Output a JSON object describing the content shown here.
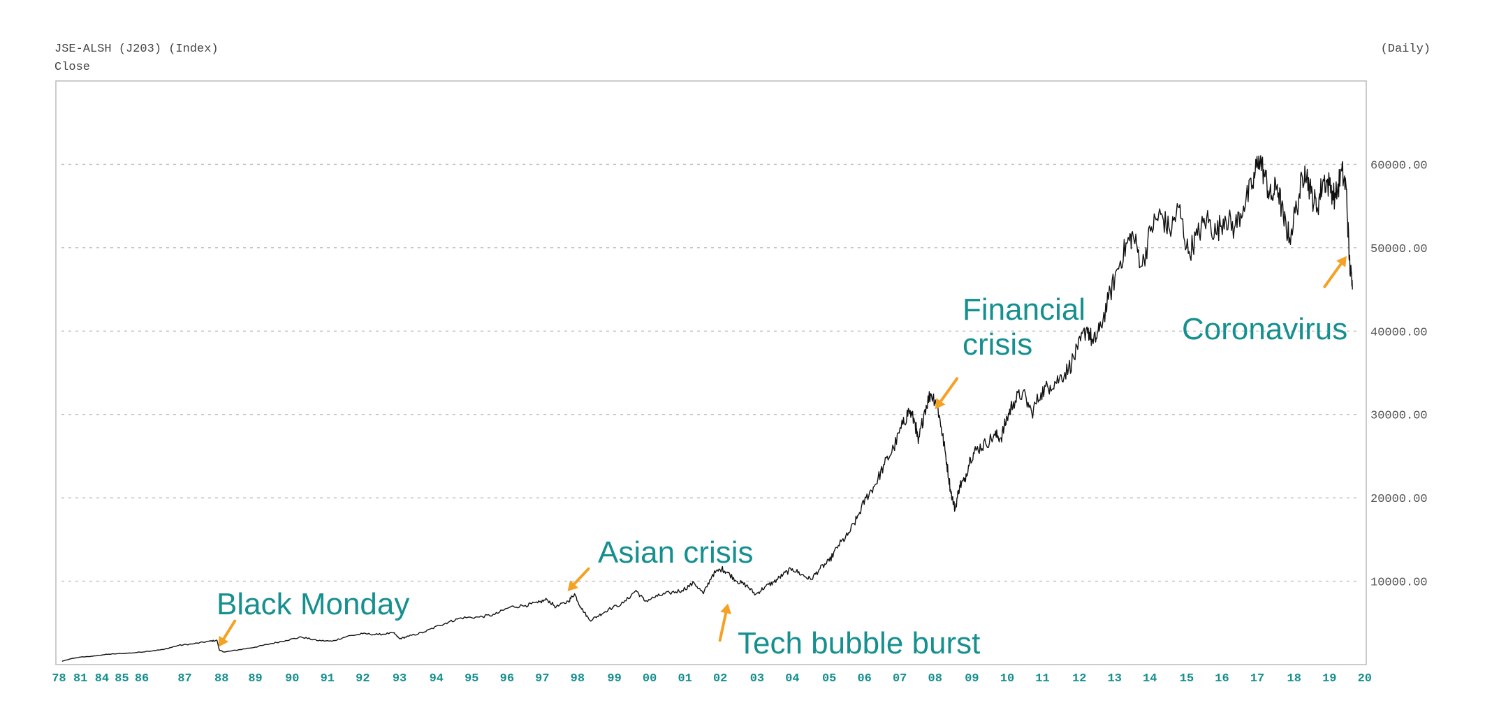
{
  "header": {
    "title": "JSE-ALSH (J203) (Index)",
    "subtitle": "Close",
    "frequency": "(Daily)"
  },
  "colors": {
    "line": "#111111",
    "annotation": "#168f8f",
    "arrow": "#f4a124",
    "xtick": "#168f8f",
    "grid": "#bdbdbd",
    "frame": "#bbbbbb"
  },
  "chart_data": {
    "type": "line",
    "title": "JSE-ALSH (J203) (Index)",
    "ylabel": "",
    "xlabel": "",
    "grid": true,
    "ylim": [
      0,
      70000
    ],
    "xlim": [
      1978.0,
      2020.7
    ],
    "y_ticks": [
      {
        "value": 10000,
        "label": "10000.00"
      },
      {
        "value": 20000,
        "label": "20000.00"
      },
      {
        "value": 30000,
        "label": "30000.00"
      },
      {
        "value": 40000,
        "label": "40000.00"
      },
      {
        "value": 50000,
        "label": "50000.00"
      },
      {
        "value": 60000,
        "label": "60000.00"
      }
    ],
    "x_ticks": [
      {
        "value": 1978.1,
        "label": "78"
      },
      {
        "value": 1978.8,
        "label": "81"
      },
      {
        "value": 1979.5,
        "label": "84"
      },
      {
        "value": 1980.15,
        "label": "85"
      },
      {
        "value": 1980.8,
        "label": "86"
      },
      {
        "value": 1982.2,
        "label": "87"
      },
      {
        "value": 1983.4,
        "label": "88"
      },
      {
        "value": 1984.5,
        "label": "89"
      },
      {
        "value": 1985.7,
        "label": "90"
      },
      {
        "value": 1986.85,
        "label": "91"
      },
      {
        "value": 1988.0,
        "label": "92"
      },
      {
        "value": 1989.2,
        "label": "93"
      },
      {
        "value": 1990.4,
        "label": "94"
      },
      {
        "value": 1991.55,
        "label": "95"
      },
      {
        "value": 1992.7,
        "label": "96"
      },
      {
        "value": 1993.85,
        "label": "97"
      },
      {
        "value": 1995.0,
        "label": "98"
      },
      {
        "value": 1996.2,
        "label": "99"
      },
      {
        "value": 1997.35,
        "label": "00"
      },
      {
        "value": 1998.5,
        "label": "01"
      },
      {
        "value": 1999.65,
        "label": "02"
      },
      {
        "value": 2000.85,
        "label": "03"
      },
      {
        "value": 2002.0,
        "label": "04"
      },
      {
        "value": 2003.2,
        "label": "05"
      },
      {
        "value": 2004.35,
        "label": "06"
      },
      {
        "value": 2005.5,
        "label": "07"
      },
      {
        "value": 2006.65,
        "label": "08"
      },
      {
        "value": 2007.85,
        "label": "09"
      },
      {
        "value": 2009.0,
        "label": "10"
      },
      {
        "value": 2010.15,
        "label": "11"
      },
      {
        "value": 2011.35,
        "label": "12"
      },
      {
        "value": 2012.5,
        "label": "13"
      },
      {
        "value": 2013.65,
        "label": "14"
      },
      {
        "value": 2014.85,
        "label": "15"
      },
      {
        "value": 2016.0,
        "label": "16"
      },
      {
        "value": 2017.15,
        "label": "17"
      },
      {
        "value": 2018.35,
        "label": "18"
      },
      {
        "value": 2019.5,
        "label": "19"
      },
      {
        "value": 2020.65,
        "label": "20"
      }
    ],
    "series": [
      {
        "name": "Close",
        "points": [
          [
            1978.2,
            400
          ],
          [
            1978.5,
            700
          ],
          [
            1978.8,
            900
          ],
          [
            1979.2,
            1000
          ],
          [
            1979.6,
            1200
          ],
          [
            1980.0,
            1300
          ],
          [
            1980.5,
            1400
          ],
          [
            1981.0,
            1600
          ],
          [
            1981.5,
            1800
          ],
          [
            1982.0,
            2300
          ],
          [
            1982.5,
            2500
          ],
          [
            1983.0,
            2800
          ],
          [
            1983.25,
            2900
          ],
          [
            1983.33,
            1700
          ],
          [
            1983.5,
            1500
          ],
          [
            1984.0,
            1800
          ],
          [
            1984.5,
            2100
          ],
          [
            1985.0,
            2500
          ],
          [
            1985.5,
            2900
          ],
          [
            1986.0,
            3300
          ],
          [
            1986.5,
            2900
          ],
          [
            1987.0,
            2800
          ],
          [
            1987.5,
            3400
          ],
          [
            1988.0,
            3700
          ],
          [
            1988.5,
            3600
          ],
          [
            1989.0,
            3800
          ],
          [
            1989.2,
            3100
          ],
          [
            1989.5,
            3400
          ],
          [
            1990.0,
            3900
          ],
          [
            1990.5,
            4700
          ],
          [
            1990.8,
            5100
          ],
          [
            1991.2,
            5600
          ],
          [
            1991.8,
            5700
          ],
          [
            1992.3,
            6000
          ],
          [
            1992.8,
            6900
          ],
          [
            1993.3,
            7100
          ],
          [
            1993.7,
            7400
          ],
          [
            1994.0,
            7800
          ],
          [
            1994.3,
            6900
          ],
          [
            1994.7,
            7600
          ],
          [
            1994.9,
            8500
          ],
          [
            1995.1,
            6900
          ],
          [
            1995.4,
            5300
          ],
          [
            1995.7,
            5900
          ],
          [
            1996.0,
            6600
          ],
          [
            1996.5,
            7400
          ],
          [
            1996.9,
            8900
          ],
          [
            1997.2,
            7600
          ],
          [
            1997.6,
            8200
          ],
          [
            1998.0,
            8600
          ],
          [
            1998.4,
            8900
          ],
          [
            1998.8,
            9800
          ],
          [
            1999.1,
            8500
          ],
          [
            1999.4,
            10800
          ],
          [
            1999.7,
            11500
          ],
          [
            1999.9,
            11000
          ],
          [
            2000.2,
            10000
          ],
          [
            2000.5,
            9500
          ],
          [
            2000.8,
            8400
          ],
          [
            2001.1,
            9300
          ],
          [
            2001.4,
            9900
          ],
          [
            2001.7,
            10800
          ],
          [
            2002.0,
            11500
          ],
          [
            2002.3,
            10800
          ],
          [
            2002.6,
            10200
          ],
          [
            2002.9,
            11500
          ],
          [
            2003.2,
            12400
          ],
          [
            2003.5,
            14300
          ],
          [
            2003.8,
            15500
          ],
          [
            2004.1,
            17500
          ],
          [
            2004.4,
            20000
          ],
          [
            2004.7,
            21600
          ],
          [
            2005.0,
            24000
          ],
          [
            2005.3,
            26000
          ],
          [
            2005.6,
            28800
          ],
          [
            2005.8,
            30500
          ],
          [
            2006.0,
            29000
          ],
          [
            2006.1,
            26500
          ],
          [
            2006.3,
            30400
          ],
          [
            2006.5,
            32500
          ],
          [
            2006.7,
            31600
          ],
          [
            2006.85,
            28500
          ],
          [
            2007.0,
            25000
          ],
          [
            2007.15,
            21000
          ],
          [
            2007.3,
            18600
          ],
          [
            2007.45,
            21500
          ],
          [
            2007.6,
            22000
          ],
          [
            2007.8,
            24800
          ],
          [
            2008.0,
            25800
          ],
          [
            2008.3,
            26500
          ],
          [
            2008.6,
            27500
          ],
          [
            2008.8,
            27200
          ],
          [
            2009.0,
            29600
          ],
          [
            2009.2,
            31500
          ],
          [
            2009.5,
            32600
          ],
          [
            2009.8,
            30200
          ],
          [
            2010.1,
            32600
          ],
          [
            2010.4,
            33500
          ],
          [
            2010.7,
            34300
          ],
          [
            2011.0,
            35500
          ],
          [
            2011.3,
            37800
          ],
          [
            2011.6,
            40500
          ],
          [
            2011.8,
            38500
          ],
          [
            2012.0,
            40000
          ],
          [
            2012.3,
            43800
          ],
          [
            2012.6,
            47500
          ],
          [
            2012.9,
            50500
          ],
          [
            2013.1,
            51500
          ],
          [
            2013.4,
            47800
          ],
          [
            2013.7,
            52500
          ],
          [
            2014.0,
            54000
          ],
          [
            2014.3,
            52000
          ],
          [
            2014.6,
            54800
          ],
          [
            2014.9,
            49300
          ],
          [
            2015.2,
            51500
          ],
          [
            2015.5,
            53500
          ],
          [
            2015.8,
            51700
          ],
          [
            2016.1,
            53800
          ],
          [
            2016.4,
            52300
          ],
          [
            2016.7,
            55000
          ],
          [
            2017.0,
            57500
          ],
          [
            2017.2,
            61000
          ],
          [
            2017.4,
            58500
          ],
          [
            2017.6,
            55800
          ],
          [
            2017.8,
            57600
          ],
          [
            2018.0,
            53500
          ],
          [
            2018.2,
            51200
          ],
          [
            2018.5,
            56000
          ],
          [
            2018.7,
            59800
          ],
          [
            2018.9,
            56500
          ],
          [
            2019.1,
            54800
          ],
          [
            2019.3,
            58200
          ],
          [
            2019.5,
            57500
          ],
          [
            2019.7,
            56000
          ],
          [
            2019.9,
            59200
          ],
          [
            2020.05,
            57000
          ],
          [
            2020.15,
            48500
          ],
          [
            2020.25,
            45000
          ]
        ]
      }
    ],
    "annotations": [
      {
        "id": "black-monday",
        "label": [
          "Black Monday"
        ],
        "x": 1983.3,
        "y": 1600
      },
      {
        "id": "asian-crisis",
        "label": [
          "Asian crisis"
        ],
        "x": 1994.9,
        "y": 8300
      },
      {
        "id": "tech-bubble",
        "label": [
          "Tech bubble burst"
        ],
        "x": 1999.9,
        "y": 8500
      },
      {
        "id": "financial-crisis",
        "label": [
          "Financial",
          "crisis"
        ],
        "x": 2006.65,
        "y": 31800
      },
      {
        "id": "coronavirus",
        "label": [
          "Coronavirus"
        ],
        "x": 2020.15,
        "y": 48500
      }
    ]
  }
}
